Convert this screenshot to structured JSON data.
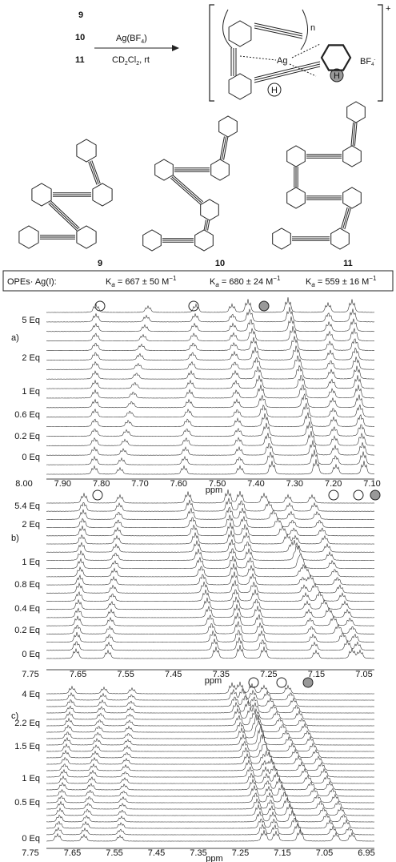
{
  "scheme": {
    "reactants": [
      "9",
      "10",
      "11"
    ],
    "reagent": {
      "main": "Ag(BF",
      "sub": "4",
      "end": ")"
    },
    "conditions": {
      "a": "CD",
      "b": "2",
      "c": "Cl",
      "d": "2",
      "e": ", rt"
    },
    "product": {
      "n": "n",
      "ag": "Ag",
      "h": [
        "H",
        "H"
      ],
      "charge": "+",
      "counterion": {
        "main": "BF",
        "sub": "4",
        "sup": "-"
      }
    },
    "labels": [
      "9",
      "10",
      "11"
    ]
  },
  "binding": {
    "label": "OPEs· Ag(I):",
    "constants": [
      {
        "k": "K",
        "sub": "a",
        "text": " = 667 ± 50 M",
        "sup": "−1"
      },
      {
        "k": "K",
        "sub": "a",
        "text": " = 680 ± 24 M",
        "sup": "−1"
      },
      {
        "k": "K",
        "sub": "a",
        "text": " = 559 ± 16 M",
        "sup": "−1"
      }
    ]
  },
  "panels": [
    {
      "label": "a)",
      "equivalents": [
        "5 Eq",
        "2 Eq",
        "1 Eq",
        "0.6 Eq",
        "0.2 Eq",
        "0 Eq"
      ],
      "ticks": [
        "8.00",
        "7.90",
        "7.80",
        "7.70",
        "7.60",
        "7.50",
        "7.40",
        "7.30",
        "7.20",
        "7.10"
      ],
      "axis_label": "ppm"
    },
    {
      "label": "b)",
      "equivalents": [
        "5.4 Eq",
        "2 Eq",
        "1 Eq",
        "0.8 Eq",
        "0.4 Eq",
        "0.2 Eq",
        "0 Eq"
      ],
      "ticks": [
        "7.75",
        "7.65",
        "7.55",
        "7.45",
        "7.35",
        "7.25",
        "7.15",
        "7.05"
      ],
      "axis_label": "ppm"
    },
    {
      "label": "c)",
      "equivalents": [
        "4 Eq",
        "2.2 Eq",
        "1.5 Eq",
        "1 Eq",
        "0.5 Eq",
        "0 Eq"
      ],
      "ticks": [
        "7.75",
        "7.65",
        "7.55",
        "7.45",
        "7.35",
        "7.25",
        "7.15",
        "7.05",
        "6.95"
      ],
      "axis_label": "ppm"
    }
  ]
}
